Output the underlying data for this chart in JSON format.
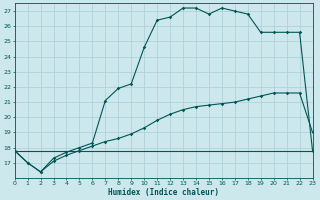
{
  "xlabel": "Humidex (Indice chaleur)",
  "bg_color": "#cce8ec",
  "grid_color": "#aacdd4",
  "line_color": "#005555",
  "xlim": [
    0,
    23
  ],
  "ylim": [
    16,
    27.5
  ],
  "yticks": [
    17,
    18,
    19,
    20,
    21,
    22,
    23,
    24,
    25,
    26,
    27
  ],
  "xticks": [
    0,
    1,
    2,
    3,
    4,
    5,
    6,
    7,
    8,
    9,
    10,
    11,
    12,
    13,
    14,
    15,
    16,
    17,
    18,
    19,
    20,
    21,
    22,
    23
  ],
  "line1_x": [
    0,
    1,
    2,
    3,
    4,
    5,
    6,
    7,
    8,
    9,
    10,
    11,
    12,
    13,
    14,
    15,
    16,
    17,
    18,
    19,
    20,
    21,
    22,
    23
  ],
  "line1_y": [
    17.8,
    17.0,
    16.4,
    17.3,
    17.7,
    18.0,
    18.3,
    21.1,
    21.9,
    22.2,
    24.6,
    26.4,
    26.6,
    27.2,
    27.2,
    26.8,
    27.2,
    27.0,
    26.8,
    25.6,
    25.6,
    25.6,
    25.6,
    17.8
  ],
  "line2_x": [
    0,
    1,
    2,
    3,
    4,
    5,
    6,
    7,
    8,
    9,
    10,
    11,
    12,
    13,
    14,
    15,
    16,
    17,
    18,
    19,
    20,
    21,
    22,
    23
  ],
  "line2_y": [
    17.8,
    17.0,
    16.4,
    17.1,
    17.5,
    17.8,
    18.1,
    18.4,
    18.6,
    18.9,
    19.3,
    19.8,
    20.2,
    20.5,
    20.7,
    20.8,
    20.9,
    21.0,
    21.2,
    21.4,
    21.6,
    21.6,
    21.6,
    19.0
  ],
  "line3_x": [
    0,
    23
  ],
  "line3_y": [
    17.8,
    17.8
  ]
}
